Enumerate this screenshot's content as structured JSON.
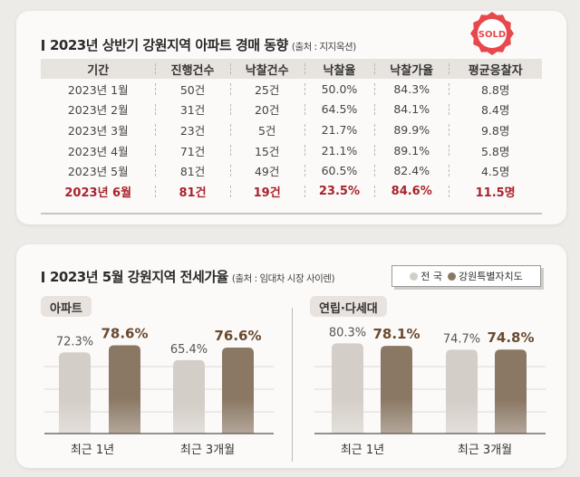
{
  "auction": {
    "title": "2023년 상반기 강원지역 아파트 경매 동향",
    "source": "(출처 : 지지옥션)",
    "stamp": "SOLD",
    "stamp_color": "#e8484c",
    "highlight_color": "#a8232b",
    "columns": [
      "기간",
      "진행건수",
      "낙찰건수",
      "낙찰율",
      "낙찰가율",
      "평균응찰자"
    ],
    "rows": [
      [
        "2023년 1월",
        "50건",
        "25건",
        "50.0%",
        "84.3%",
        "8.8명"
      ],
      [
        "2023년 2월",
        "31건",
        "20건",
        "64.5%",
        "84.1%",
        "8.4명"
      ],
      [
        "2023년 3월",
        "23건",
        "5건",
        "21.7%",
        "89.9%",
        "9.8명"
      ],
      [
        "2023년 4월",
        "71건",
        "15건",
        "21.1%",
        "89.1%",
        "5.8명"
      ],
      [
        "2023년 5월",
        "81건",
        "49건",
        "60.5%",
        "82.4%",
        "4.5명"
      ],
      [
        "2023년 6월",
        "81건",
        "19건",
        "23.5%",
        "84.6%",
        "11.5명"
      ]
    ]
  },
  "chart_data": [
    {
      "type": "bar",
      "title": "아파트",
      "categories": [
        "최근 1년",
        "최근 3개월"
      ],
      "series": [
        {
          "name": "전 국",
          "values": [
            72.3,
            65.4
          ],
          "color": "#d4cec8"
        },
        {
          "name": "강원특별자치도",
          "values": [
            78.6,
            76.6
          ],
          "color": "#8b7864"
        }
      ],
      "unit": "%",
      "grid": true
    },
    {
      "type": "bar",
      "title": "연립·다세대",
      "categories": [
        "최근 1년",
        "최근 3개월"
      ],
      "series": [
        {
          "name": "전 국",
          "values": [
            80.3,
            74.7
          ],
          "color": "#d4cec8"
        },
        {
          "name": "강원특별자치도",
          "values": [
            78.1,
            74.8
          ],
          "color": "#8b7864"
        }
      ],
      "unit": "%",
      "grid": true
    }
  ],
  "jeonse": {
    "title": "2023년 5월 강원지역 전세가율",
    "source": "(출처 : 임대차 시장 사이렌)",
    "legend": [
      "전 국",
      "강원특별자치도"
    ],
    "value_label_color": "#6b4a2e"
  }
}
